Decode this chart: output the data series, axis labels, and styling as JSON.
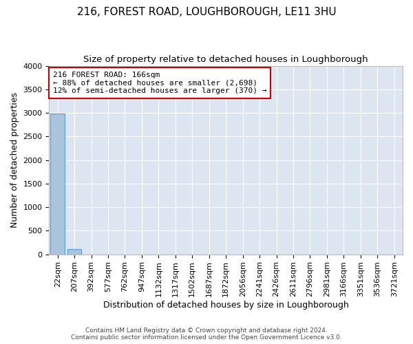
{
  "title": "216, FOREST ROAD, LOUGHBOROUGH, LE11 3HU",
  "subtitle": "Size of property relative to detached houses in Loughborough",
  "xlabel": "Distribution of detached houses by size in Loughborough",
  "ylabel": "Number of detached properties",
  "categories": [
    "22sqm",
    "207sqm",
    "392sqm",
    "577sqm",
    "762sqm",
    "947sqm",
    "1132sqm",
    "1317sqm",
    "1502sqm",
    "1687sqm",
    "1872sqm",
    "2056sqm",
    "2241sqm",
    "2426sqm",
    "2611sqm",
    "2796sqm",
    "2981sqm",
    "3166sqm",
    "3351sqm",
    "3536sqm",
    "3721sqm"
  ],
  "values": [
    2980,
    110,
    0,
    0,
    0,
    0,
    0,
    0,
    0,
    0,
    0,
    0,
    0,
    0,
    0,
    0,
    0,
    0,
    0,
    0,
    0
  ],
  "bar_color": "#aac4dd",
  "bar_edge_color": "#5b9bd5",
  "annotation_text_line1": "216 FOREST ROAD: 166sqm",
  "annotation_text_line2": "← 88% of detached houses are smaller (2,698)",
  "annotation_text_line3": "12% of semi-detached houses are larger (370) →",
  "annotation_box_color": "#ffffff",
  "annotation_box_edge_color": "#cc0000",
  "ylim": [
    0,
    4000
  ],
  "yticks": [
    0,
    500,
    1000,
    1500,
    2000,
    2500,
    3000,
    3500,
    4000
  ],
  "background_color": "#dce6f1",
  "grid_color": "#ffffff",
  "footer_line1": "Contains HM Land Registry data © Crown copyright and database right 2024.",
  "footer_line2": "Contains public sector information licensed under the Open Government Licence v3.0.",
  "title_fontsize": 11,
  "subtitle_fontsize": 9.5,
  "ylabel_fontsize": 9,
  "xlabel_fontsize": 9,
  "tick_fontsize": 8,
  "footer_fontsize": 6.5,
  "ann_fontsize": 8
}
